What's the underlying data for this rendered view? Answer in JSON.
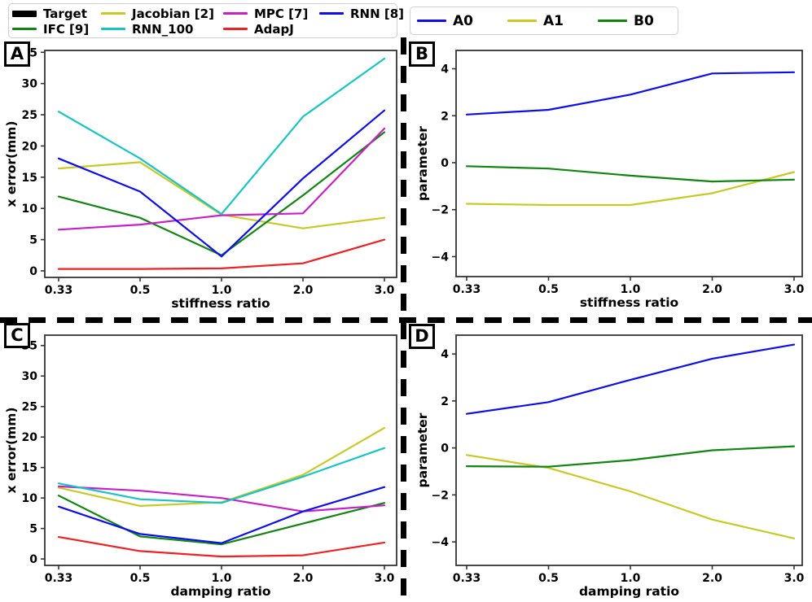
{
  "figure": {
    "background": "#ffffff"
  },
  "colors": {
    "target": "#000000",
    "jacobian": "#c9c926",
    "mpc": "#c91fc9",
    "rnn8": "#0d0dee",
    "ifc": "#108510",
    "rnn100": "#17c5c5",
    "adapj": "#ee2222",
    "a0": "#0d0dee",
    "a1": "#c9c926",
    "b0": "#108510",
    "spine": "#333333",
    "text": "#000000"
  },
  "panels": [
    {
      "label": "A"
    },
    {
      "label": "B"
    },
    {
      "label": "C"
    },
    {
      "label": "D"
    }
  ],
  "legends": {
    "models": {
      "items": [
        {
          "label": "Target",
          "color": "#000000",
          "thick": true
        },
        {
          "label": "Jacobian [2]",
          "color": "#c9c926"
        },
        {
          "label": "MPC [7]",
          "color": "#c91fc9"
        },
        {
          "label": "RNN [8]",
          "color": "#0d0dee"
        },
        {
          "label": "IFC [9]",
          "color": "#108510"
        },
        {
          "label": "RNN_100",
          "color": "#17c5c5"
        },
        {
          "label": "AdapJ",
          "color": "#ee2222"
        }
      ]
    },
    "parameters": {
      "items": [
        {
          "label": "A0",
          "color": "#0d0dee"
        },
        {
          "label": "A1",
          "color": "#c9c926"
        },
        {
          "label": "B0",
          "color": "#108510"
        }
      ]
    }
  },
  "chart_data": [
    {
      "panel": "A",
      "type": "line",
      "title": "",
      "xlabel": "stiffness ratio",
      "ylabel": "x error(mm)",
      "categories": [
        "0.33",
        "0.5",
        "1.0",
        "2.0",
        "3.0"
      ],
      "yticks": [
        0,
        5,
        10,
        15,
        20,
        25,
        30,
        35
      ],
      "ylim": [
        -1.05,
        35.3
      ],
      "grid": false,
      "legend_position": "figure-top-left",
      "series": [
        {
          "name": "Jacobian [2]",
          "color": "#c9c926",
          "values": [
            16.4,
            17.4,
            9.0,
            6.8,
            8.5
          ]
        },
        {
          "name": "IFC [9]",
          "color": "#108510",
          "values": [
            11.9,
            8.5,
            2.5,
            12.1,
            22.2
          ]
        },
        {
          "name": "MPC [7]",
          "color": "#c91fc9",
          "values": [
            6.6,
            7.4,
            8.9,
            9.2,
            22.8
          ]
        },
        {
          "name": "RNN [8]",
          "color": "#0d0dee",
          "values": [
            18.0,
            12.7,
            2.3,
            14.8,
            25.7
          ]
        },
        {
          "name": "RNN_100",
          "color": "#17c5c5",
          "values": [
            25.5,
            18.0,
            9.1,
            24.7,
            34.0
          ]
        },
        {
          "name": "AdapJ",
          "color": "#ee2222",
          "values": [
            0.3,
            0.3,
            0.4,
            1.2,
            5.0
          ]
        }
      ],
      "layout": {
        "svg": [
          0,
          46,
          497,
          350
        ],
        "plot": [
          55,
          16,
          487,
          295
        ],
        "xtick_pad": [
          17,
          15
        ]
      }
    },
    {
      "panel": "B",
      "type": "line",
      "title": "",
      "xlabel": "stiffness ratio",
      "ylabel": "parameter",
      "categories": [
        "0.33",
        "0.5",
        "1.0",
        "2.0",
        "3.0"
      ],
      "yticks": [
        -4,
        -2,
        0,
        2,
        4
      ],
      "ylim": [
        -4.85,
        4.78
      ],
      "grid": false,
      "legend_position": "figure-top-right",
      "series": [
        {
          "name": "A0",
          "color": "#0d0dee",
          "values": [
            2.05,
            2.25,
            2.9,
            3.8,
            3.85
          ]
        },
        {
          "name": "A1",
          "color": "#c9c926",
          "values": [
            -1.75,
            -1.8,
            -1.8,
            -1.3,
            -0.4
          ]
        },
        {
          "name": "B0",
          "color": "#108510",
          "values": [
            -0.15,
            -0.25,
            -0.55,
            -0.8,
            -0.72
          ]
        }
      ],
      "layout": {
        "svg": [
          497,
          46,
          500,
          350
        ],
        "plot": [
          63,
          16,
          488,
          294
        ],
        "xtick_pad": [
          13,
          10
        ]
      }
    },
    {
      "panel": "C",
      "type": "line",
      "title": "",
      "xlabel": "damping ratio",
      "ylabel": "x error(mm)",
      "categories": [
        "0.33",
        "0.5",
        "1.0",
        "2.0",
        "3.0"
      ],
      "yticks": [
        0,
        5,
        10,
        15,
        20,
        25,
        30,
        35
      ],
      "ylim": [
        -1.05,
        36.7
      ],
      "grid": false,
      "legend_position": "figure-top-left",
      "series": [
        {
          "name": "Jacobian [2]",
          "color": "#c9c926",
          "values": [
            11.7,
            8.7,
            9.3,
            13.8,
            21.5
          ]
        },
        {
          "name": "IFC [9]",
          "color": "#108510",
          "values": [
            10.4,
            3.7,
            2.4,
            5.8,
            9.2
          ]
        },
        {
          "name": "MPC [7]",
          "color": "#c91fc9",
          "values": [
            11.9,
            11.2,
            10.0,
            7.8,
            8.8
          ]
        },
        {
          "name": "RNN [8]",
          "color": "#0d0dee",
          "values": [
            8.6,
            4.1,
            2.6,
            7.8,
            11.8
          ]
        },
        {
          "name": "RNN_100",
          "color": "#17c5c5",
          "values": [
            12.4,
            9.8,
            9.2,
            13.5,
            18.2
          ]
        },
        {
          "name": "AdapJ",
          "color": "#ee2222",
          "values": [
            3.6,
            1.3,
            0.4,
            0.6,
            2.7
          ]
        }
      ],
      "layout": {
        "svg": [
          0,
          390,
          497,
          350
        ],
        "plot": [
          55,
          22,
          487,
          305
        ],
        "xtick_pad": [
          17,
          15
        ]
      }
    },
    {
      "panel": "D",
      "type": "line",
      "title": "",
      "xlabel": "damping ratio",
      "ylabel": "parameter",
      "categories": [
        "0.33",
        "0.5",
        "1.0",
        "2.0",
        "3.0"
      ],
      "yticks": [
        -4,
        -2,
        0,
        2,
        4
      ],
      "ylim": [
        -5.0,
        4.8
      ],
      "grid": false,
      "legend_position": "figure-top-right",
      "series": [
        {
          "name": "A0",
          "color": "#0d0dee",
          "values": [
            1.45,
            1.95,
            2.9,
            3.8,
            4.4
          ]
        },
        {
          "name": "A1",
          "color": "#c9c926",
          "values": [
            -0.3,
            -0.85,
            -1.85,
            -3.05,
            -3.85
          ]
        },
        {
          "name": "B0",
          "color": "#108510",
          "values": [
            -0.78,
            -0.8,
            -0.52,
            -0.1,
            0.07
          ]
        }
      ],
      "layout": {
        "svg": [
          497,
          390,
          500,
          350
        ],
        "plot": [
          63,
          22,
          488,
          305
        ],
        "xtick_pad": [
          13,
          10
        ]
      }
    }
  ]
}
